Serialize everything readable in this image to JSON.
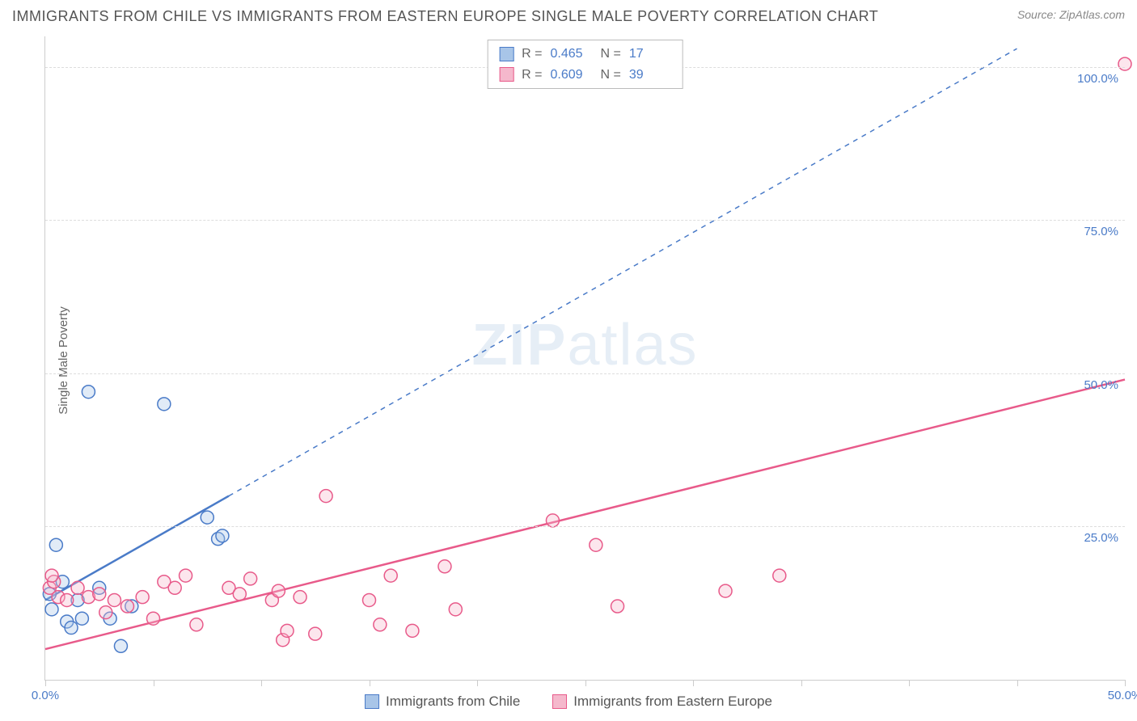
{
  "title": "IMMIGRANTS FROM CHILE VS IMMIGRANTS FROM EASTERN EUROPE SINGLE MALE POVERTY CORRELATION CHART",
  "source_label": "Source: ZipAtlas.com",
  "ylabel": "Single Male Poverty",
  "watermark": "ZIPatlas",
  "chart": {
    "type": "scatter",
    "xlim": [
      0,
      50
    ],
    "ylim": [
      0,
      105
    ],
    "x_ticks": [
      0,
      5,
      10,
      15,
      20,
      25,
      30,
      35,
      40,
      45,
      50
    ],
    "x_tick_labels": {
      "0": "0.0%",
      "50": "50.0%"
    },
    "y_gridlines": [
      25,
      50,
      75,
      100
    ],
    "y_tick_labels": {
      "25": "25.0%",
      "50": "50.0%",
      "75": "75.0%",
      "100": "100.0%"
    },
    "background_color": "#ffffff",
    "grid_color": "#dddddd",
    "axis_color": "#cccccc",
    "tick_label_color": "#4a7bc8",
    "marker_radius": 8,
    "marker_stroke_width": 1.5,
    "marker_fill_opacity": 0.35,
    "series": [
      {
        "id": "chile",
        "label": "Immigrants from Chile",
        "color_stroke": "#4a7bc8",
        "color_fill": "#a8c5e8",
        "R": "0.465",
        "N": "17",
        "points": [
          [
            0.2,
            14
          ],
          [
            0.3,
            11.5
          ],
          [
            0.5,
            22
          ],
          [
            1.0,
            9.5
          ],
          [
            1.2,
            8.5
          ],
          [
            1.5,
            13
          ],
          [
            1.7,
            10
          ],
          [
            0.8,
            16
          ],
          [
            2.0,
            47
          ],
          [
            2.5,
            15
          ],
          [
            3.0,
            10
          ],
          [
            3.5,
            5.5
          ],
          [
            4.0,
            12
          ],
          [
            5.5,
            45
          ],
          [
            7.5,
            26.5
          ],
          [
            8.0,
            23
          ],
          [
            8.2,
            23.5
          ]
        ],
        "trend_solid": {
          "x1": 0,
          "y1": 13,
          "x2": 8.5,
          "y2": 30
        },
        "trend_dashed": {
          "x1": 8.5,
          "y1": 30,
          "x2": 45,
          "y2": 103
        }
      },
      {
        "id": "eastern_europe",
        "label": "Immigrants from Eastern Europe",
        "color_stroke": "#e85a8a",
        "color_fill": "#f5b8cc",
        "R": "0.609",
        "N": "39",
        "points": [
          [
            0.2,
            15
          ],
          [
            0.4,
            16
          ],
          [
            0.6,
            13.5
          ],
          [
            0.3,
            17
          ],
          [
            1.0,
            13
          ],
          [
            1.5,
            15
          ],
          [
            2.0,
            13.5
          ],
          [
            2.5,
            14
          ],
          [
            2.8,
            11
          ],
          [
            3.2,
            13
          ],
          [
            3.8,
            12
          ],
          [
            4.5,
            13.5
          ],
          [
            5.0,
            10
          ],
          [
            5.5,
            16
          ],
          [
            6.0,
            15
          ],
          [
            6.5,
            17
          ],
          [
            7.0,
            9
          ],
          [
            8.5,
            15
          ],
          [
            9.0,
            14
          ],
          [
            9.5,
            16.5
          ],
          [
            10.5,
            13
          ],
          [
            10.8,
            14.5
          ],
          [
            11.0,
            6.5
          ],
          [
            11.2,
            8
          ],
          [
            11.8,
            13.5
          ],
          [
            12.5,
            7.5
          ],
          [
            13.0,
            30
          ],
          [
            15.0,
            13
          ],
          [
            15.5,
            9
          ],
          [
            16.0,
            17
          ],
          [
            17.0,
            8
          ],
          [
            18.5,
            18.5
          ],
          [
            19.0,
            11.5
          ],
          [
            23.5,
            26
          ],
          [
            25.5,
            22
          ],
          [
            26.5,
            12
          ],
          [
            31.5,
            14.5
          ],
          [
            34.0,
            17
          ],
          [
            50.0,
            100.5
          ]
        ],
        "trend_solid": {
          "x1": 0,
          "y1": 5,
          "x2": 50,
          "y2": 49
        },
        "trend_dashed": null
      }
    ]
  },
  "legend_top": {
    "rows": [
      {
        "swatch_fill": "#a8c5e8",
        "swatch_stroke": "#4a7bc8",
        "R_label": "R =",
        "R_val": "0.465",
        "N_label": "N =",
        "N_val": "17"
      },
      {
        "swatch_fill": "#f5b8cc",
        "swatch_stroke": "#e85a8a",
        "R_label": "R =",
        "R_val": "0.609",
        "N_label": "N =",
        "N_val": "39"
      }
    ]
  },
  "legend_bottom": {
    "items": [
      {
        "swatch_fill": "#a8c5e8",
        "swatch_stroke": "#4a7bc8",
        "label": "Immigrants from Chile"
      },
      {
        "swatch_fill": "#f5b8cc",
        "swatch_stroke": "#e85a8a",
        "label": "Immigrants from Eastern Europe"
      }
    ]
  }
}
